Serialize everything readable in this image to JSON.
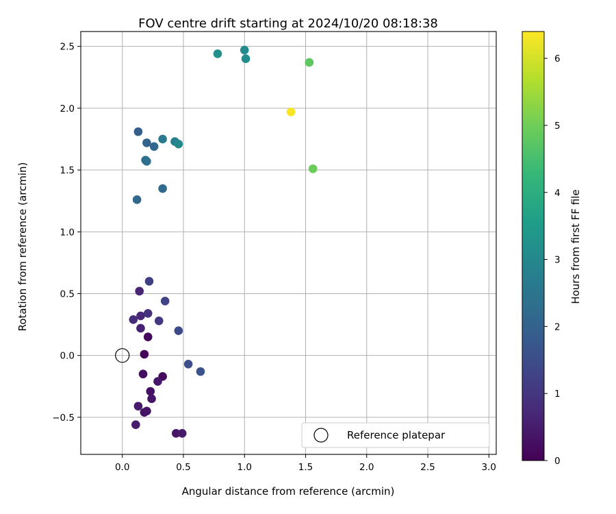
{
  "chart_data": {
    "type": "scatter",
    "title": "FOV centre drift starting at 2024/10/20 08:18:38",
    "xlabel": "Angular distance from reference (arcmin)",
    "ylabel": "Rotation from reference (arcmin)",
    "xlim": [
      -0.34,
      3.06
    ],
    "ylim": [
      -0.8,
      2.62
    ],
    "xticks": [
      0.0,
      0.5,
      1.0,
      1.5,
      2.0,
      2.5,
      3.0
    ],
    "yticks": [
      -0.5,
      0.0,
      0.5,
      1.0,
      1.5,
      2.0,
      2.5
    ],
    "grid": true,
    "legend": {
      "placement": "lower-right",
      "entries": [
        "Reference platepar"
      ]
    },
    "reference_point": {
      "name": "Reference platepar",
      "x": 0.0,
      "y": 0.0
    },
    "colorbar": {
      "label": "Hours from first FF file",
      "colormap": "viridis",
      "range": [
        0,
        6.4
      ],
      "ticks": [
        0,
        1,
        2,
        3,
        4,
        5,
        6
      ]
    },
    "points": [
      {
        "x": 0.18,
        "y": 0.01,
        "hours": 0.05
      },
      {
        "x": 0.21,
        "y": 0.15,
        "hours": 0.15
      },
      {
        "x": 0.33,
        "y": -0.17,
        "hours": 0.2
      },
      {
        "x": 0.17,
        "y": -0.15,
        "hours": 0.25
      },
      {
        "x": 0.23,
        "y": -0.29,
        "hours": 0.3
      },
      {
        "x": 0.24,
        "y": -0.35,
        "hours": 0.35
      },
      {
        "x": 0.29,
        "y": -0.21,
        "hours": 0.4
      },
      {
        "x": 0.18,
        "y": -0.46,
        "hours": 0.3
      },
      {
        "x": 0.2,
        "y": -0.45,
        "hours": 0.35
      },
      {
        "x": 0.13,
        "y": -0.41,
        "hours": 0.45
      },
      {
        "x": 0.11,
        "y": -0.56,
        "hours": 0.5
      },
      {
        "x": 0.44,
        "y": -0.63,
        "hours": 0.4
      },
      {
        "x": 0.49,
        "y": -0.63,
        "hours": 0.45
      },
      {
        "x": 0.15,
        "y": 0.22,
        "hours": 0.6
      },
      {
        "x": 0.15,
        "y": 0.32,
        "hours": 0.7
      },
      {
        "x": 0.09,
        "y": 0.29,
        "hours": 0.8
      },
      {
        "x": 0.14,
        "y": 0.52,
        "hours": 0.65
      },
      {
        "x": 0.21,
        "y": 0.34,
        "hours": 0.9
      },
      {
        "x": 0.3,
        "y": 0.28,
        "hours": 1.0
      },
      {
        "x": 0.22,
        "y": 0.6,
        "hours": 1.2
      },
      {
        "x": 0.35,
        "y": 0.44,
        "hours": 1.3
      },
      {
        "x": 0.46,
        "y": 0.2,
        "hours": 1.4
      },
      {
        "x": 0.54,
        "y": -0.07,
        "hours": 1.55
      },
      {
        "x": 0.64,
        "y": -0.13,
        "hours": 1.6
      },
      {
        "x": 0.12,
        "y": 1.26,
        "hours": 2.1
      },
      {
        "x": 0.33,
        "y": 1.35,
        "hours": 2.2
      },
      {
        "x": 0.13,
        "y": 1.81,
        "hours": 1.9
      },
      {
        "x": 0.2,
        "y": 1.72,
        "hours": 2.0
      },
      {
        "x": 0.26,
        "y": 1.69,
        "hours": 2.15
      },
      {
        "x": 0.19,
        "y": 1.58,
        "hours": 2.25
      },
      {
        "x": 0.2,
        "y": 1.57,
        "hours": 2.35
      },
      {
        "x": 0.33,
        "y": 1.75,
        "hours": 2.6
      },
      {
        "x": 0.43,
        "y": 1.73,
        "hours": 2.8
      },
      {
        "x": 0.46,
        "y": 1.71,
        "hours": 3.0
      },
      {
        "x": 0.78,
        "y": 2.44,
        "hours": 3.2
      },
      {
        "x": 1.0,
        "y": 2.47,
        "hours": 3.05
      },
      {
        "x": 1.01,
        "y": 2.4,
        "hours": 3.1
      },
      {
        "x": 1.53,
        "y": 2.37,
        "hours": 4.8
      },
      {
        "x": 1.56,
        "y": 1.51,
        "hours": 4.95
      },
      {
        "x": 1.38,
        "y": 1.97,
        "hours": 6.35
      }
    ]
  }
}
